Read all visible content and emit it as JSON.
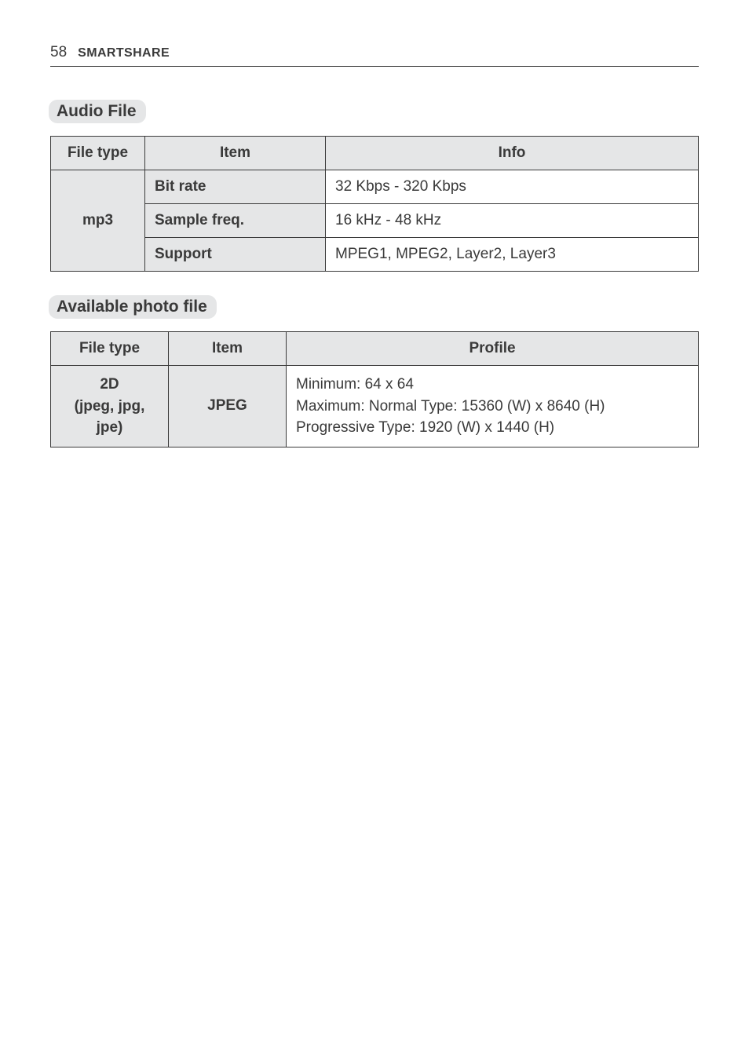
{
  "header": {
    "page_number": "58",
    "title": "SMARTSHARE"
  },
  "sections": [
    {
      "heading": "Audio File",
      "table": {
        "columns": [
          "File type",
          "Item",
          "Info"
        ],
        "rowspan_label": "mp3",
        "rows": [
          {
            "item": "Bit rate",
            "info": "32 Kbps - 320 Kbps"
          },
          {
            "item": "Sample freq.",
            "info": "16 kHz - 48 kHz"
          },
          {
            "item": "Support",
            "info": "MPEG1, MPEG2, Layer2, Layer3"
          }
        ]
      }
    },
    {
      "heading": "Available photo file",
      "table": {
        "columns": [
          "File type",
          "Item",
          "Profile"
        ],
        "row": {
          "filetype_lines": [
            "2D",
            "(jpeg, jpg,",
            "jpe)"
          ],
          "item": "JPEG",
          "profile_lines": [
            "Minimum: 64 x 64",
            "Maximum: Normal Type: 15360 (W) x 8640 (H)",
            "Progressive Type: 1920 (W) x 1440 (H)"
          ]
        }
      }
    }
  ]
}
